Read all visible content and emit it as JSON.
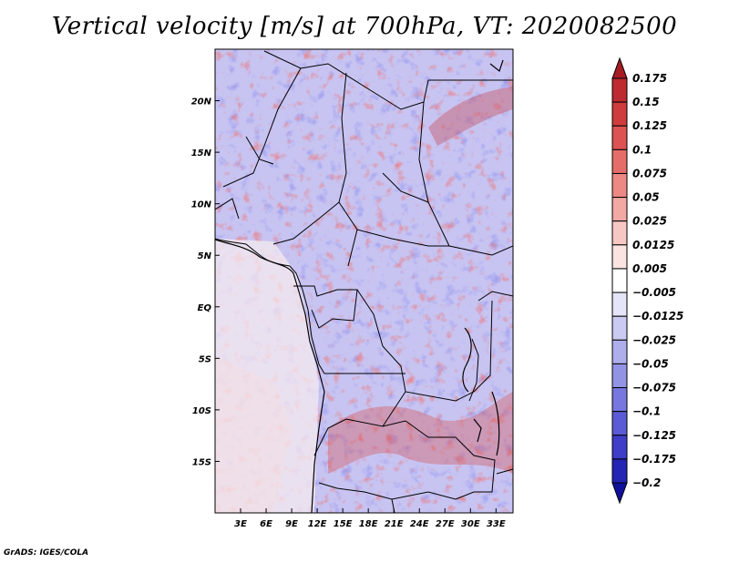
{
  "chart_data": {
    "type": "heatmap",
    "title": "Vertical velocity [m/s] at 700hPa, VT: 2020082500",
    "variable": "Vertical velocity",
    "units": "m/s",
    "level": "700hPa",
    "valid_time": "2020082500",
    "lon_range": [
      0,
      35
    ],
    "lat_range": [
      -20,
      25
    ],
    "x_ticks": [
      {
        "value": 3,
        "label": "3E"
      },
      {
        "value": 6,
        "label": "6E"
      },
      {
        "value": 9,
        "label": "9E"
      },
      {
        "value": 12,
        "label": "12E"
      },
      {
        "value": 15,
        "label": "15E"
      },
      {
        "value": 18,
        "label": "18E"
      },
      {
        "value": 21,
        "label": "21E"
      },
      {
        "value": 24,
        "label": "24E"
      },
      {
        "value": 27,
        "label": "27E"
      },
      {
        "value": 30,
        "label": "30E"
      },
      {
        "value": 33,
        "label": "33E"
      }
    ],
    "y_ticks": [
      {
        "value": 20,
        "label": "20N"
      },
      {
        "value": 15,
        "label": "15N"
      },
      {
        "value": 10,
        "label": "10N"
      },
      {
        "value": 5,
        "label": "5N"
      },
      {
        "value": 0,
        "label": "EQ"
      },
      {
        "value": -5,
        "label": "5S"
      },
      {
        "value": -10,
        "label": "10S"
      },
      {
        "value": -15,
        "label": "15S"
      }
    ],
    "colorbar": {
      "labels": [
        "0.175",
        "0.15",
        "0.125",
        "0.1",
        "0.075",
        "0.05",
        "0.025",
        "0.0125",
        "0.005",
        "−0.005",
        "−0.0125",
        "−0.025",
        "−0.05",
        "−0.075",
        "−0.1",
        "−0.125",
        "−0.175",
        "−0.2"
      ],
      "colors": [
        "#a51c23",
        "#bd2a2f",
        "#cf3c3e",
        "#dc5352",
        "#e56d69",
        "#ec8985",
        "#f2a8a3",
        "#f7c7c3",
        "#fbe3e1",
        "#ffffff",
        "#e5e5f9",
        "#cacaf2",
        "#aeaeec",
        "#9393e6",
        "#7777df",
        "#5b5bd5",
        "#3e3ec8",
        "#2424b5",
        "#10109a"
      ]
    }
  },
  "footer": {
    "credit": "GrADS: IGES/COLA"
  }
}
